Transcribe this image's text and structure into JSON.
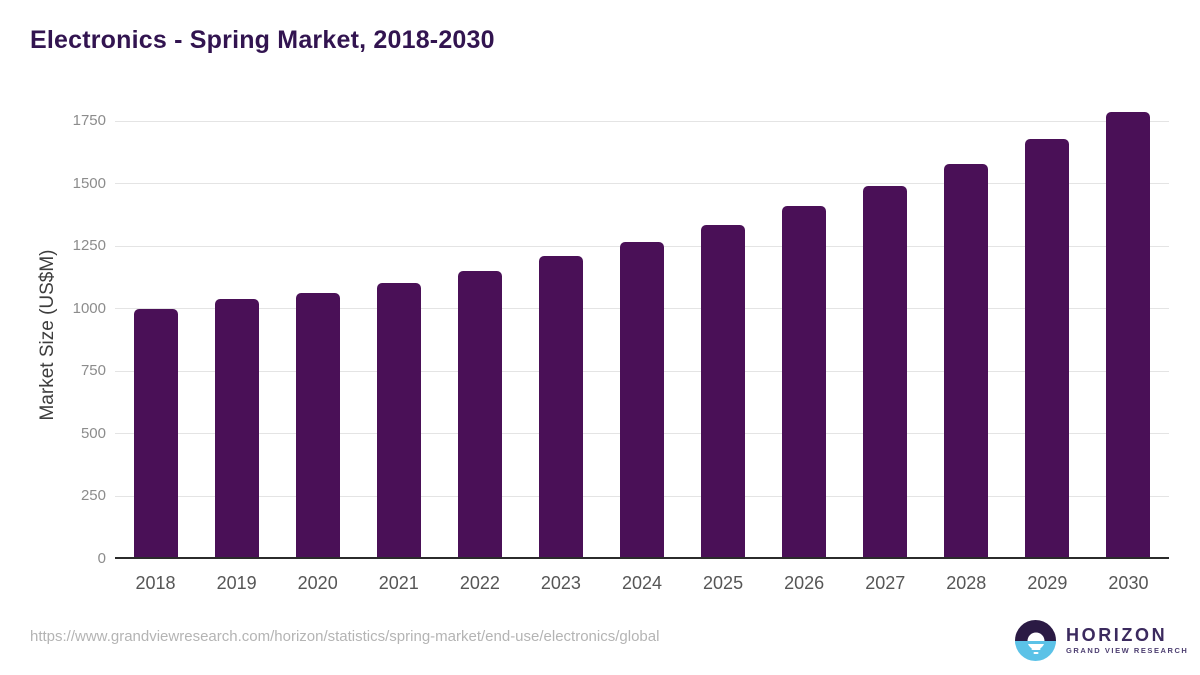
{
  "header": {
    "title": "Electronics - Spring Market, 2018-2030"
  },
  "chart_data": {
    "type": "bar",
    "title": "Electronics - Spring Market, 2018-2030",
    "xlabel": "",
    "ylabel": "Market Size (US$M)",
    "categories": [
      "2018",
      "2019",
      "2020",
      "2021",
      "2022",
      "2023",
      "2024",
      "2025",
      "2026",
      "2027",
      "2028",
      "2029",
      "2030"
    ],
    "values": [
      995,
      1037,
      1061,
      1100,
      1148,
      1209,
      1263,
      1333,
      1410,
      1490,
      1578,
      1678,
      1785
    ],
    "yticks": [
      0,
      250,
      500,
      750,
      1000,
      1250,
      1500,
      1750
    ],
    "ylim": [
      0,
      1850
    ],
    "grid": "horizontal",
    "legend": "none",
    "bar_color": "#4a1057",
    "gridline_color": "#e4e4e4",
    "axis_line_color": "#2b2b2b"
  },
  "footer": {
    "source_url": "https://www.grandviewresearch.com/horizon/statistics/spring-market/end-use/electronics/global",
    "logo": {
      "brand": "HORIZON",
      "tagline": "GRAND VIEW RESEARCH",
      "icon": "horizon-sun-icon",
      "colors": {
        "dark_purple": "#2b1a44",
        "light_blue": "#5bc2e7",
        "text_purple": "#3b2a5e"
      }
    }
  },
  "colors": {
    "title": "#321450",
    "bar": "#4a1057",
    "y_tick_text": "#8c8c8c",
    "x_tick_text": "#565656",
    "url_text": "#b4b4b4",
    "background": "#ffffff"
  }
}
